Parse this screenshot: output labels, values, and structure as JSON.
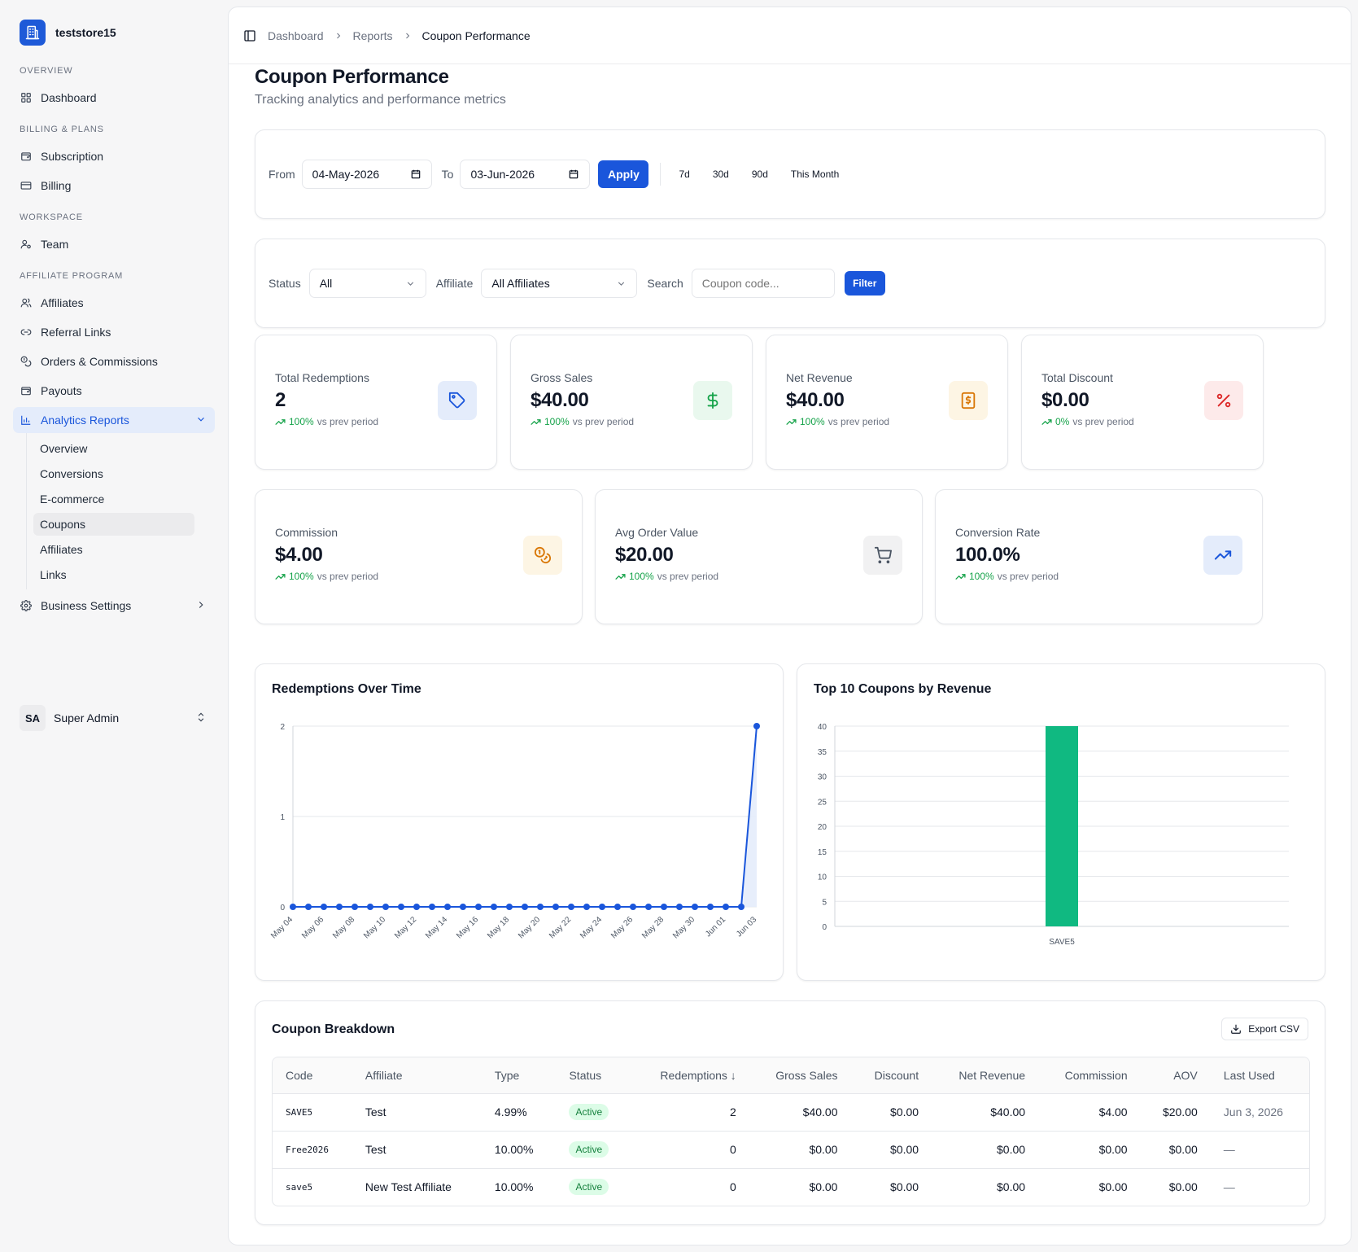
{
  "sidebar": {
    "brand": "teststore15",
    "sections": {
      "overview": "Overview",
      "billing": "Billing & Plans",
      "workspace": "Workspace",
      "affiliate": "Affiliate Program"
    },
    "items": {
      "dashboard": "Dashboard",
      "subscription": "Subscription",
      "billing": "Billing",
      "team": "Team",
      "affiliates": "Affiliates",
      "referral_links": "Referral Links",
      "orders_commissions": "Orders & Commissions",
      "payouts": "Payouts",
      "analytics_reports": "Analytics Reports",
      "business_settings": "Business Settings"
    },
    "analytics_sub": [
      "Overview",
      "Conversions",
      "E-commerce",
      "Coupons",
      "Affiliates",
      "Links"
    ],
    "active_sub": "Coupons",
    "user": {
      "initials": "SA",
      "name": "Super Admin"
    }
  },
  "breadcrumb": [
    "Dashboard",
    "Reports",
    "Coupon Performance"
  ],
  "page": {
    "title": "Coupon Performance",
    "subtitle": "Tracking analytics and performance metrics"
  },
  "date_filter": {
    "from_label": "From",
    "from_value": "04-May-2026",
    "to_label": "To",
    "to_value": "03-Jun-2026",
    "apply_label": "Apply",
    "presets": [
      "7d",
      "30d",
      "90d",
      "This Month"
    ]
  },
  "filters": {
    "status_label": "Status",
    "status_value": "All",
    "affiliate_label": "Affiliate",
    "affiliate_value": "All Affiliates",
    "search_label": "Search",
    "search_placeholder": "Coupon code...",
    "filter_button": "Filter"
  },
  "stats": [
    {
      "label": "Total Redemptions",
      "value": "2",
      "delta": "100%",
      "delta_text": "vs prev period",
      "icon": "tag-icon",
      "accent": "#1a56db",
      "bg": "#e4ecfb"
    },
    {
      "label": "Gross Sales",
      "value": "$40.00",
      "delta": "100%",
      "delta_text": "vs prev period",
      "icon": "dollar-icon",
      "accent": "#16a34a",
      "bg": "#e9f8ee"
    },
    {
      "label": "Net Revenue",
      "value": "$40.00",
      "delta": "100%",
      "delta_text": "vs prev period",
      "icon": "receipt-icon",
      "accent": "#d97706",
      "bg": "#fdf5e4"
    },
    {
      "label": "Total Discount",
      "value": "$0.00",
      "delta": "0%",
      "delta_text": "vs prev period",
      "icon": "percent-icon",
      "accent": "#dc2626",
      "bg": "#fdeaea"
    },
    {
      "label": "Commission",
      "value": "$4.00",
      "delta": "100%",
      "delta_text": "vs prev period",
      "icon": "coins-icon",
      "accent": "#d97706",
      "bg": "#fdf5e4"
    },
    {
      "label": "Avg Order Value",
      "value": "$20.00",
      "delta": "100%",
      "delta_text": "vs prev period",
      "icon": "cart-icon",
      "accent": "#4b5563",
      "bg": "#f1f1f2"
    },
    {
      "label": "Conversion Rate",
      "value": "100.0%",
      "delta": "100%",
      "delta_text": "vs prev period",
      "icon": "trending-up-icon",
      "accent": "#1a56db",
      "bg": "#e4ecfb"
    }
  ],
  "chart_data": [
    {
      "type": "line",
      "title": "Redemptions Over Time",
      "x": [
        "May 04",
        "May 05",
        "May 06",
        "May 07",
        "May 08",
        "May 09",
        "May 10",
        "May 11",
        "May 12",
        "May 13",
        "May 14",
        "May 15",
        "May 16",
        "May 17",
        "May 18",
        "May 19",
        "May 20",
        "May 21",
        "May 22",
        "May 23",
        "May 24",
        "May 25",
        "May 26",
        "May 27",
        "May 28",
        "May 29",
        "May 30",
        "May 31",
        "Jun 01",
        "Jun 02",
        "Jun 03"
      ],
      "tick_labels": [
        "May 04",
        "May 06",
        "May 08",
        "May 10",
        "May 12",
        "May 14",
        "May 16",
        "May 18",
        "May 20",
        "May 22",
        "May 24",
        "May 26",
        "May 28",
        "May 30",
        "Jun 01",
        "Jun 03"
      ],
      "values": [
        0,
        0,
        0,
        0,
        0,
        0,
        0,
        0,
        0,
        0,
        0,
        0,
        0,
        0,
        0,
        0,
        0,
        0,
        0,
        0,
        0,
        0,
        0,
        0,
        0,
        0,
        0,
        0,
        0,
        0,
        2
      ],
      "ylim": [
        0,
        2
      ],
      "yticks": [
        0,
        1,
        2
      ],
      "color": "#1a56db",
      "fill": "#e4ecfb",
      "grid": true
    },
    {
      "type": "bar",
      "title": "Top 10 Coupons by Revenue",
      "categories": [
        "SAVE5"
      ],
      "values": [
        40
      ],
      "ylim": [
        0,
        40
      ],
      "yticks": [
        0,
        5,
        10,
        15,
        20,
        25,
        30,
        35,
        40
      ],
      "color": "#10b981",
      "grid": true
    }
  ],
  "breakdown": {
    "title": "Coupon Breakdown",
    "export_label": "Export CSV",
    "columns": [
      "Code",
      "Affiliate",
      "Type",
      "Status",
      "Redemptions ↓",
      "Gross Sales",
      "Discount",
      "Net Revenue",
      "Commission",
      "AOV",
      "Last Used"
    ],
    "rows": [
      [
        "SAVE5",
        "Test",
        "4.99%",
        "Active",
        "2",
        "$40.00",
        "$0.00",
        "$40.00",
        "$4.00",
        "$20.00",
        "Jun 3, 2026"
      ],
      [
        "Free2026",
        "Test",
        "10.00%",
        "Active",
        "0",
        "$0.00",
        "$0.00",
        "$0.00",
        "$0.00",
        "$0.00",
        "—"
      ],
      [
        "save5",
        "New Test Affiliate",
        "10.00%",
        "Active",
        "0",
        "$0.00",
        "$0.00",
        "$0.00",
        "$0.00",
        "$0.00",
        "—"
      ]
    ]
  }
}
